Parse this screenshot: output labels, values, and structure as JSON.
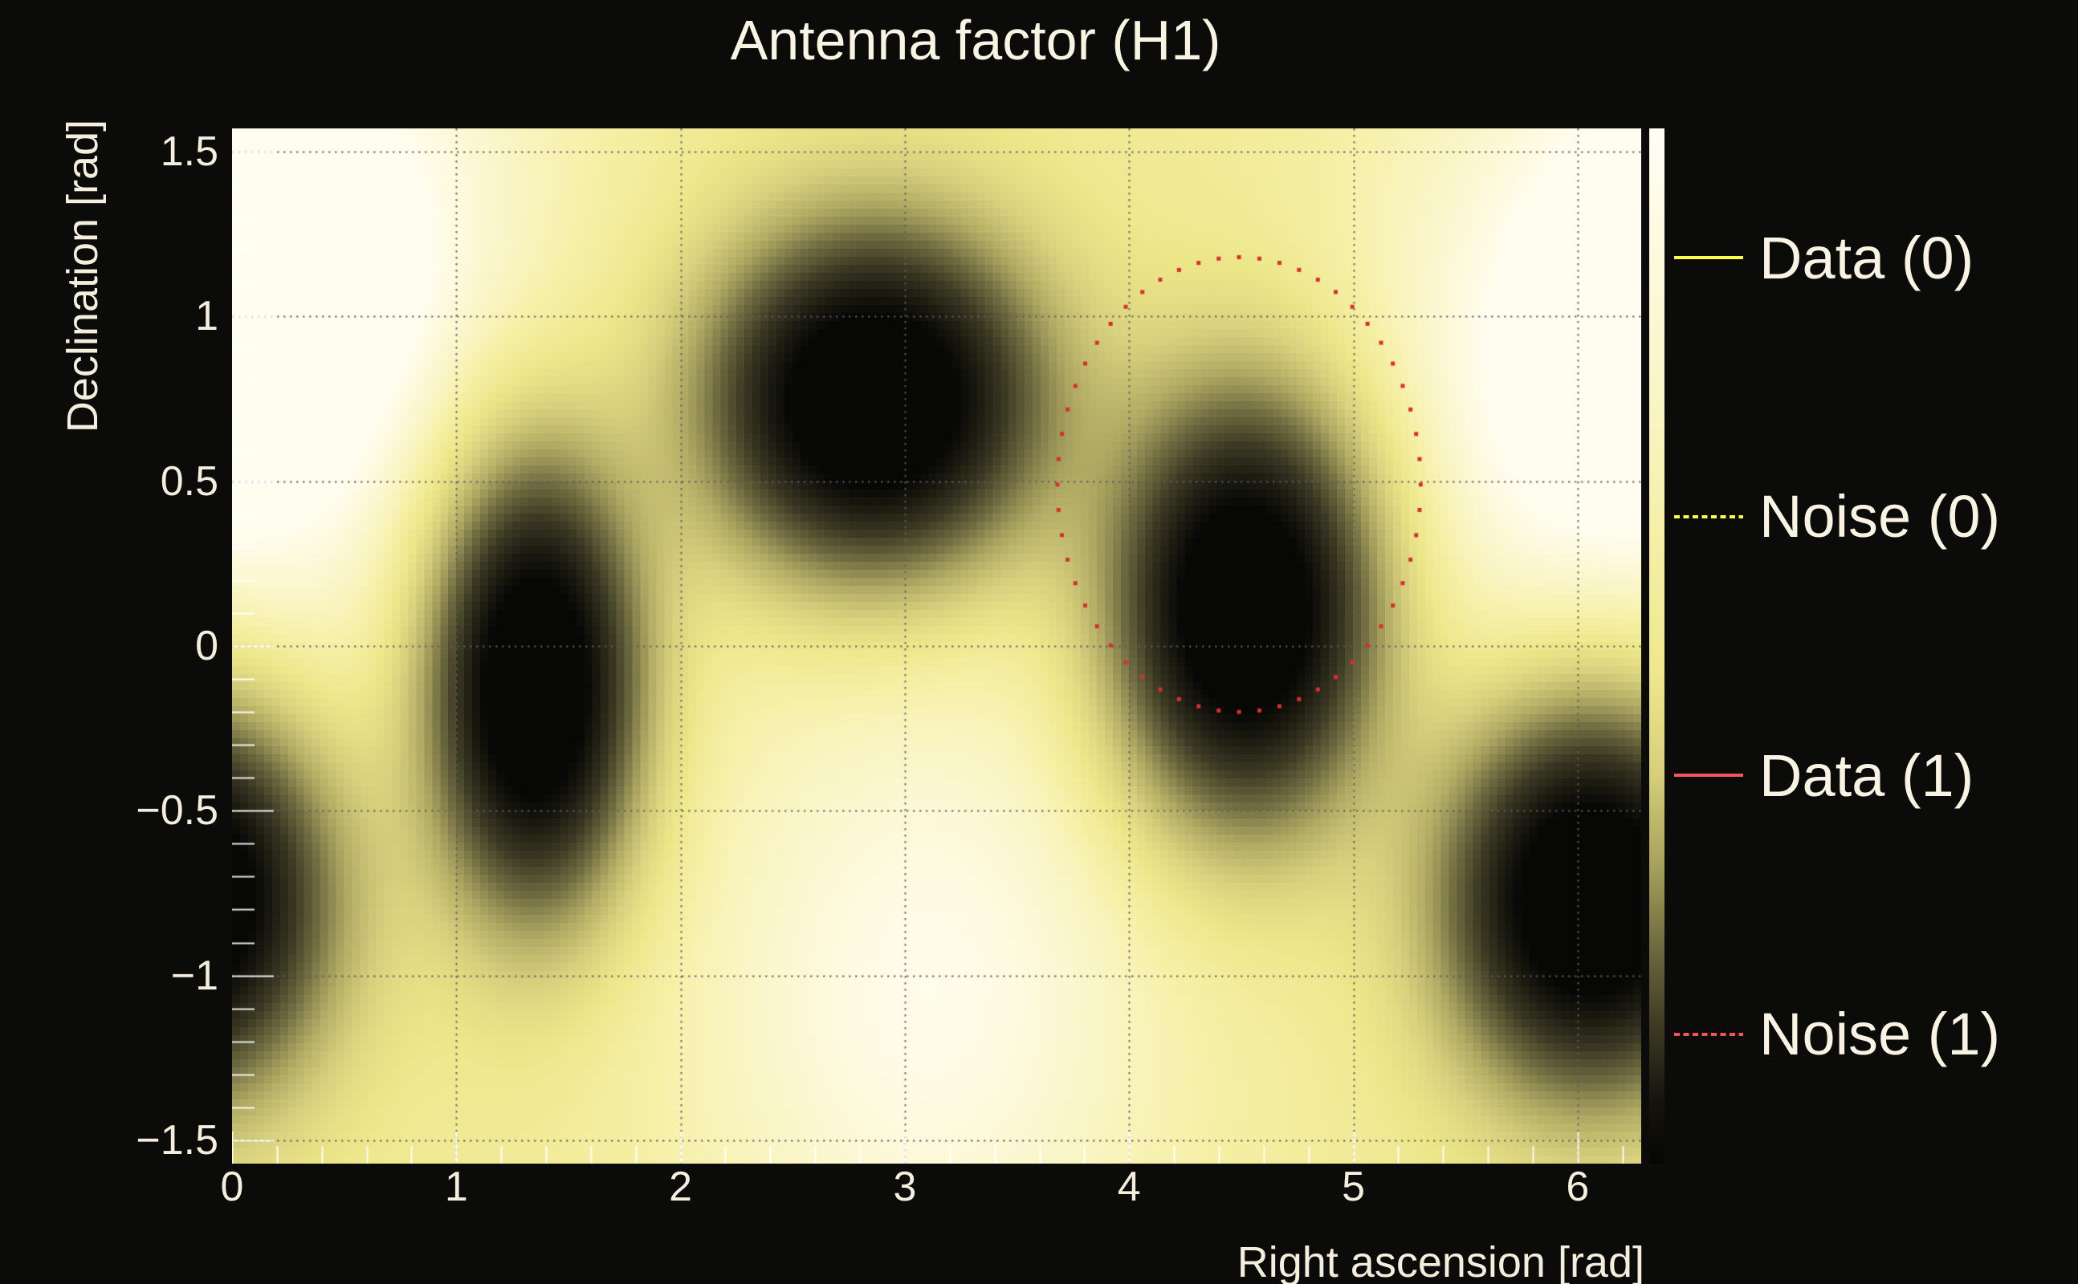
{
  "window": {
    "background": "#0b0b09"
  },
  "title": {
    "text": "Antenna factor (H1)",
    "color": "#f8f4e3"
  },
  "axes": {
    "x": {
      "label": "Right ascension [rad]",
      "tick_labels": [
        "0",
        "1",
        "2",
        "3",
        "4",
        "5",
        "6"
      ],
      "tick_values": [
        0,
        1,
        2,
        3,
        4,
        5,
        6
      ],
      "min": 0,
      "max": 6.2832,
      "minor_tick_step": 0.2
    },
    "y": {
      "label": "Declination [rad]",
      "tick_labels": [
        "1.5",
        "1",
        "0.5",
        "0",
        "−0.5",
        "−1",
        "−1.5"
      ],
      "tick_values": [
        1.5,
        1,
        0.5,
        0,
        -0.5,
        -1,
        -1.5
      ],
      "min": -1.5708,
      "max": 1.5708,
      "minor_tick_step": 0.1
    }
  },
  "style": {
    "text_color": "#f3eedd",
    "grid_color": "#5f5c64",
    "tick_mark_color": "#ffffff",
    "grid_style": "dotted"
  },
  "chart_data": {
    "type": "heatmap",
    "title": "Antenna factor (H1)",
    "xlabel": "Right ascension [rad]",
    "ylabel": "Declination [rad]",
    "xlim": [
      0,
      6.2832
    ],
    "ylim": [
      -1.5708,
      1.5708
    ],
    "x_ticks": [
      0,
      1,
      2,
      3,
      4,
      5,
      6
    ],
    "y_ticks": [
      1.5,
      1,
      0.5,
      0,
      -0.5,
      -1,
      -1.5
    ],
    "grid": "dotted",
    "legend_position": "right",
    "resolution": {
      "nx": 176,
      "ny": 129
    },
    "base_level": 0.83,
    "wrap_ra": true,
    "bright_regions": [
      {
        "ra": 0.5,
        "dec": 1.25,
        "sigma": 0.75,
        "amp": 0.15
      },
      {
        "ra": 3.1,
        "dec": -1.05,
        "sigma": 0.85,
        "amp": 0.16
      },
      {
        "ra": 5.95,
        "dec": 0.7,
        "sigma": 0.8,
        "amp": 0.15
      }
    ],
    "dark_blobs": [
      {
        "ra": 1.35,
        "dec": -0.12,
        "sigma_ra": 0.3,
        "sigma_dec": 0.44,
        "depth": 1.15
      },
      {
        "ra": 2.86,
        "dec": 0.74,
        "sigma_ra": 0.48,
        "sigma_dec": 0.34,
        "depth": 1.15
      },
      {
        "ra": 4.52,
        "dec": 0.11,
        "sigma_ra": 0.38,
        "sigma_dec": 0.42,
        "depth": 1.15
      },
      {
        "ra": 6.06,
        "dec": -0.76,
        "sigma_ra": 0.42,
        "sigma_dec": 0.38,
        "depth": 1.15
      }
    ],
    "colormap": [
      [
        0.0,
        "#070705"
      ],
      [
        0.15,
        "#1e1d12"
      ],
      [
        0.3,
        "#3c3a24"
      ],
      [
        0.45,
        "#6e6a40"
      ],
      [
        0.6,
        "#b0aa64"
      ],
      [
        0.72,
        "#d9d27e"
      ],
      [
        0.8,
        "#ece689"
      ],
      [
        0.88,
        "#f6f0a8"
      ],
      [
        0.95,
        "#fbf7d0"
      ],
      [
        1.0,
        "#fffdf0"
      ]
    ],
    "noise_ellipse": {
      "ra": 4.49,
      "dec": 0.49,
      "semi_ra": 0.81,
      "semi_dec": 0.69,
      "dots": 56,
      "dot_color": "#d63030",
      "dot_size": 5
    },
    "colorbar": {
      "stops_top_to_bottom": [
        [
          0.0,
          "#fffdf4"
        ],
        [
          0.1,
          "#fdfae2"
        ],
        [
          0.25,
          "#faf5c8"
        ],
        [
          0.4,
          "#f5efa6"
        ],
        [
          0.52,
          "#efe88e"
        ],
        [
          0.62,
          "#d8d17c"
        ],
        [
          0.71,
          "#a8a25c"
        ],
        [
          0.79,
          "#6f6a3f"
        ],
        [
          0.87,
          "#3b3823"
        ],
        [
          0.94,
          "#15140c"
        ],
        [
          1.0,
          "#060604"
        ]
      ]
    },
    "legend": [
      {
        "label": "Data (0)",
        "color": "#fdfd4e",
        "line": "solid"
      },
      {
        "label": "Noise (0)",
        "color": "#fdfd4e",
        "line": "dashed"
      },
      {
        "label": "Data (1)",
        "color": "#f0575c",
        "line": "solid"
      },
      {
        "label": "Noise (1)",
        "color": "#f0575c",
        "line": "dashed"
      }
    ]
  }
}
